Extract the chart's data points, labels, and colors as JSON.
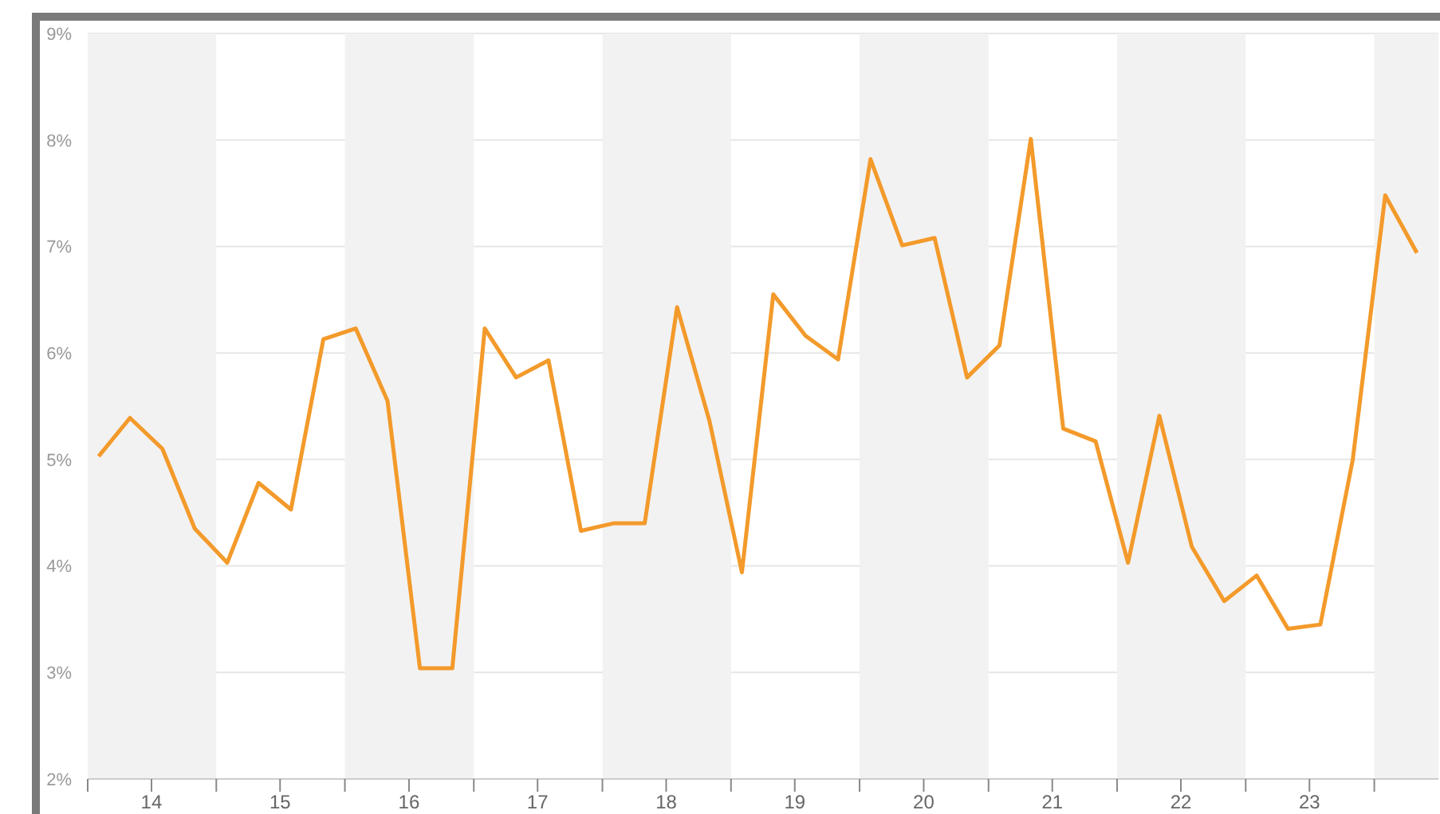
{
  "chart_data": {
    "type": "line",
    "x": [
      "2014-02",
      "2014-05",
      "2014-08",
      "2014-11",
      "2015-02",
      "2015-05",
      "2015-08",
      "2015-11",
      "2016-02",
      "2016-05",
      "2016-08",
      "2016-11",
      "2017-02",
      "2017-05",
      "2017-08",
      "2017-11",
      "2018-02",
      "2018-05",
      "2018-08",
      "2018-11",
      "2019-02",
      "2019-05",
      "2019-08",
      "2019-11",
      "2020-02",
      "2020-05",
      "2020-08",
      "2020-11",
      "2021-02",
      "2021-05",
      "2021-08",
      "2021-11",
      "2022-02",
      "2022-05",
      "2022-08",
      "2022-11",
      "2023-02",
      "2023-05",
      "2023-08",
      "2023-11",
      "2024-02",
      "2024-05"
    ],
    "series": [
      {
        "color": "#f39a2b",
        "values": [
          5.03,
          5.39,
          5.1,
          4.35,
          4.03,
          4.78,
          4.53,
          6.13,
          6.23,
          5.55,
          3.04,
          3.04,
          6.23,
          5.77,
          5.93,
          4.33,
          4.4,
          4.4,
          6.43,
          5.36,
          3.94,
          6.55,
          6.16,
          5.94,
          7.82,
          7.01,
          7.08,
          5.77,
          6.07,
          8.01,
          5.29,
          5.17,
          4.03,
          5.41,
          4.18,
          3.67,
          3.91,
          3.41,
          3.45,
          5.0,
          7.48,
          6.94
        ]
      }
    ],
    "xlim": [
      "2014-01",
      "2024-07"
    ],
    "xticks": [
      {
        "value": "2014-01",
        "label": null
      },
      {
        "value": "2014-07",
        "label": "14"
      },
      {
        "value": "2015-01",
        "label": null
      },
      {
        "value": "2015-07",
        "label": "15"
      },
      {
        "value": "2016-01",
        "label": null
      },
      {
        "value": "2016-07",
        "label": "16"
      },
      {
        "value": "2017-01",
        "label": null
      },
      {
        "value": "2017-07",
        "label": "17"
      },
      {
        "value": "2018-01",
        "label": null
      },
      {
        "value": "2018-07",
        "label": "18"
      },
      {
        "value": "2019-01",
        "label": null
      },
      {
        "value": "2019-07",
        "label": "19"
      },
      {
        "value": "2020-01",
        "label": null
      },
      {
        "value": "2020-07",
        "label": "20"
      },
      {
        "value": "2021-01",
        "label": null
      },
      {
        "value": "2021-07",
        "label": "21"
      },
      {
        "value": "2022-01",
        "label": null
      },
      {
        "value": "2022-07",
        "label": "22"
      },
      {
        "value": "2023-01",
        "label": null
      },
      {
        "value": "2023-07",
        "label": "23"
      },
      {
        "value": "2024-01",
        "label": null
      }
    ],
    "ylim": [
      2,
      9
    ],
    "yticks": [
      {
        "value": 2,
        "label": "2%"
      },
      {
        "value": 3,
        "label": "3%"
      },
      {
        "value": 4,
        "label": "4%"
      },
      {
        "value": 5,
        "label": "5%"
      },
      {
        "value": 6,
        "label": "6%"
      },
      {
        "value": 7,
        "label": "7%"
      },
      {
        "value": 8,
        "label": "8%"
      },
      {
        "value": 9,
        "label": "9%"
      }
    ],
    "bands": [
      {
        "axis": "x",
        "from": "2014-01",
        "to": "2015-01",
        "color": "#f2f2f2"
      },
      {
        "axis": "x",
        "from": "2016-01",
        "to": "2017-01",
        "color": "#f2f2f2"
      },
      {
        "axis": "x",
        "from": "2018-01",
        "to": "2019-01",
        "color": "#f2f2f2"
      },
      {
        "axis": "x",
        "from": "2020-01",
        "to": "2021-01",
        "color": "#f2f2f2"
      },
      {
        "axis": "x",
        "from": "2022-01",
        "to": "2023-01",
        "color": "#f2f2f2"
      },
      {
        "axis": "x",
        "from": "2024-01",
        "to": "2024-07",
        "color": "#f2f2f2"
      }
    ],
    "grid": "y",
    "legend": false,
    "marker": "none",
    "line_style": "solid"
  }
}
